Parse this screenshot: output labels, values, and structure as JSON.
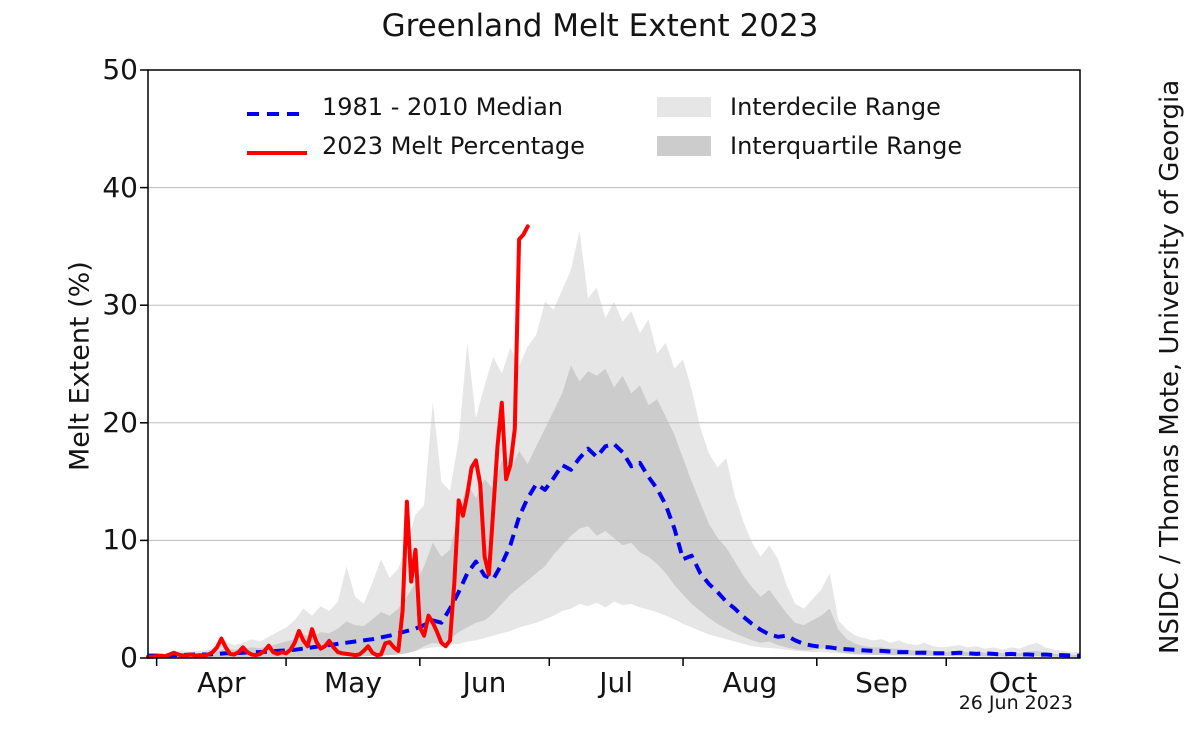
{
  "title": "Greenland Melt Extent 2023",
  "credit": "NSIDC / Thomas Mote, University of Georgia",
  "date_label": "26 Jun 2023",
  "colors": {
    "red_2023": "#ff0000",
    "blue_median": "#0000ee",
    "interdecile": "#e6e6e6",
    "interquartile": "#cccccc",
    "grid": "#bdbdbd",
    "axis": "#000000"
  },
  "legend": {
    "items": [
      {
        "label": "1981 - 2010 Median",
        "style": "dashed",
        "color": "#0000ee"
      },
      {
        "label": "2023 Melt Percentage",
        "style": "solid",
        "color": "#ff0000"
      },
      {
        "label": "Interdecile Range",
        "style": "box",
        "color": "#e6e6e6"
      },
      {
        "label": "Interquartile Range",
        "style": "box",
        "color": "#cccccc"
      }
    ]
  },
  "chart_data": {
    "type": "line",
    "title": "Greenland Melt Extent 2023",
    "xlabel": "",
    "ylabel": "Melt Extent (%)",
    "ylim": [
      0,
      50
    ],
    "y_ticks": [
      0,
      10,
      20,
      30,
      40,
      50
    ],
    "grid_values": [
      10,
      20,
      30,
      40
    ],
    "x_domain_day_of_year": [
      89,
      305
    ],
    "month_ticks": [
      {
        "doy": 91,
        "mid_doy": 106,
        "label": "Apr"
      },
      {
        "doy": 121,
        "mid_doy": 136.5,
        "label": "May"
      },
      {
        "doy": 152,
        "mid_doy": 167,
        "label": "Jun"
      },
      {
        "doy": 182,
        "mid_doy": 197.5,
        "label": "Jul"
      },
      {
        "doy": 213,
        "mid_doy": 228.5,
        "label": "Aug"
      },
      {
        "doy": 244,
        "mid_doy": 259,
        "label": "Sep"
      },
      {
        "doy": 274,
        "mid_doy": 289.5,
        "label": "Oct"
      }
    ],
    "series": [
      {
        "name": "Interdecile Range upper (90th pct)",
        "role": "band_hi",
        "band": "interdecile",
        "x_start": 89,
        "x_step": 2,
        "values": [
          0.3,
          0.3,
          0.35,
          0.5,
          0.6,
          0.5,
          0.6,
          0.7,
          0.9,
          1.4,
          1.1,
          1.3,
          1.6,
          1.4,
          1.8,
          2.2,
          2.6,
          3.2,
          4.2,
          3.6,
          4.4,
          4.0,
          4.8,
          7.8,
          5.2,
          4.6,
          6.4,
          8.4,
          6.8,
          7.6,
          9.6,
          12.2,
          13.0,
          21.8,
          15.0,
          14.2,
          18.6,
          26.8,
          20.4,
          23.2,
          25.6,
          24.2,
          26.4,
          24.8,
          26.5,
          27.5,
          30.3,
          29.6,
          31.3,
          33.0,
          36.3,
          30.6,
          31.5,
          28.9,
          30.3,
          28.6,
          29.5,
          27.6,
          28.8,
          25.9,
          26.8,
          24.6,
          25.4,
          22.8,
          19.6,
          17.4,
          16.2,
          17.0,
          13.8,
          11.6,
          9.8,
          8.6,
          9.6,
          8.4,
          6.2,
          4.6,
          4.2,
          5.0,
          5.8,
          7.2,
          3.2,
          2.4,
          1.9,
          1.7,
          1.5,
          1.6,
          1.3,
          1.5,
          1.2,
          1.1,
          1.3,
          1.0,
          0.9,
          1.0,
          1.1,
          0.9,
          1.0,
          0.8,
          0.9,
          0.7,
          0.9,
          0.8,
          1.1,
          1.3,
          0.9,
          0.7,
          0.6,
          0.5,
          0.5
        ]
      },
      {
        "name": "Interdecile Range lower (10th pct)",
        "role": "band_lo",
        "band": "interdecile",
        "x_start": 89,
        "x_step": 2,
        "values": [
          0.05,
          0.05,
          0.05,
          0.05,
          0.05,
          0.05,
          0.05,
          0.05,
          0.1,
          0.1,
          0.1,
          0.1,
          0.1,
          0.1,
          0.1,
          0.1,
          0.1,
          0.15,
          0.15,
          0.15,
          0.15,
          0.15,
          0.2,
          0.2,
          0.2,
          0.25,
          0.25,
          0.3,
          0.35,
          0.4,
          0.45,
          0.6,
          0.8,
          0.9,
          0.95,
          1.1,
          1.2,
          1.4,
          1.5,
          1.7,
          1.9,
          2.1,
          2.3,
          2.6,
          2.8,
          3.0,
          3.3,
          3.6,
          4.0,
          4.2,
          4.6,
          4.4,
          4.7,
          4.3,
          4.8,
          4.5,
          4.6,
          4.3,
          4.1,
          3.9,
          3.6,
          3.3,
          2.9,
          2.6,
          2.3,
          2.0,
          1.8,
          1.6,
          1.4,
          1.2,
          1.0,
          0.9,
          0.85,
          0.8,
          0.7,
          0.6,
          0.55,
          0.5,
          0.5,
          0.45,
          0.4,
          0.35,
          0.3,
          0.28,
          0.26,
          0.25,
          0.24,
          0.22,
          0.2,
          0.2,
          0.18,
          0.17,
          0.16,
          0.16,
          0.15,
          0.15,
          0.14,
          0.14,
          0.13,
          0.12,
          0.12,
          0.12,
          0.12,
          0.12,
          0.1,
          0.1,
          0.1,
          0.08,
          0.08
        ]
      },
      {
        "name": "Interquartile Range upper (75th pct)",
        "role": "band_hi",
        "band": "interquartile",
        "x_start": 89,
        "x_step": 2,
        "values": [
          0.2,
          0.2,
          0.25,
          0.3,
          0.35,
          0.35,
          0.4,
          0.45,
          0.55,
          0.8,
          0.7,
          0.8,
          0.9,
          0.85,
          1.0,
          1.2,
          1.4,
          1.6,
          2.0,
          1.8,
          2.2,
          2.1,
          2.5,
          3.1,
          2.8,
          2.7,
          3.3,
          3.9,
          3.6,
          4.2,
          5.2,
          6.4,
          7.8,
          9.8,
          8.6,
          9.2,
          12.4,
          14.8,
          13.6,
          15.2,
          14.4,
          16.8,
          16.0,
          17.6,
          16.5,
          18.0,
          19.5,
          21.0,
          22.5,
          24.9,
          23.5,
          24.4,
          24.0,
          24.6,
          23.0,
          24.0,
          22.5,
          23.2,
          21.5,
          22.0,
          20.5,
          19.0,
          17.0,
          15.0,
          13.2,
          11.4,
          10.2,
          9.4,
          8.2,
          7.0,
          6.0,
          5.2,
          5.8,
          4.8,
          3.8,
          3.0,
          2.8,
          3.2,
          3.6,
          4.2,
          2.4,
          1.6,
          1.2,
          1.0,
          0.9,
          0.9,
          0.8,
          0.8,
          0.7,
          0.6,
          0.7,
          0.6,
          0.5,
          0.55,
          0.6,
          0.5,
          0.55,
          0.45,
          0.5,
          0.4,
          0.45,
          0.4,
          0.55,
          0.6,
          0.45,
          0.35,
          0.3,
          0.25,
          0.25
        ]
      },
      {
        "name": "Interquartile Range lower (25th pct)",
        "role": "band_lo",
        "band": "interquartile",
        "x_start": 89,
        "x_step": 2,
        "values": [
          0.05,
          0.05,
          0.05,
          0.05,
          0.05,
          0.05,
          0.05,
          0.05,
          0.05,
          0.05,
          0.05,
          0.05,
          0.05,
          0.1,
          0.1,
          0.1,
          0.1,
          0.1,
          0.1,
          0.1,
          0.1,
          0.1,
          0.12,
          0.15,
          0.15,
          0.15,
          0.18,
          0.2,
          0.25,
          0.3,
          0.4,
          0.6,
          1.0,
          1.3,
          1.2,
          1.6,
          2.2,
          2.6,
          3.0,
          3.2,
          3.8,
          4.6,
          5.4,
          6.0,
          6.6,
          7.2,
          7.8,
          8.8,
          9.6,
          10.4,
          11.0,
          11.2,
          10.4,
          10.8,
          10.2,
          9.6,
          9.8,
          9.0,
          8.6,
          8.0,
          7.2,
          6.2,
          5.4,
          4.6,
          4.0,
          3.4,
          2.9,
          2.5,
          2.1,
          1.8,
          1.5,
          1.3,
          1.4,
          1.1,
          0.9,
          0.75,
          0.65,
          0.7,
          0.8,
          0.9,
          0.5,
          0.4,
          0.33,
          0.3,
          0.28,
          0.26,
          0.25,
          0.24,
          0.22,
          0.2,
          0.2,
          0.18,
          0.17,
          0.17,
          0.18,
          0.16,
          0.16,
          0.14,
          0.15,
          0.12,
          0.13,
          0.12,
          0.15,
          0.16,
          0.12,
          0.1,
          0.1,
          0.08,
          0.08
        ]
      },
      {
        "name": "1981 - 2010 Median",
        "role": "line",
        "line": "median",
        "x_start": 89,
        "x_step": 2,
        "values": [
          0.2,
          0.2,
          0.2,
          0.25,
          0.25,
          0.3,
          0.3,
          0.3,
          0.35,
          0.4,
          0.4,
          0.45,
          0.5,
          0.5,
          0.55,
          0.6,
          0.65,
          0.7,
          0.8,
          0.9,
          1.0,
          1.1,
          1.2,
          1.3,
          1.4,
          1.5,
          1.6,
          1.75,
          1.9,
          2.1,
          2.3,
          2.5,
          2.8,
          3.2,
          3.0,
          4.2,
          5.6,
          7.2,
          8.2,
          7.0,
          6.7,
          8.0,
          9.6,
          12.0,
          13.6,
          14.8,
          14.3,
          15.3,
          16.4,
          16.0,
          17.0,
          17.8,
          17.1,
          18.0,
          18.2,
          17.5,
          16.3,
          16.6,
          15.4,
          14.4,
          13.0,
          11.0,
          8.4,
          8.7,
          7.2,
          6.3,
          5.6,
          4.8,
          4.2,
          3.5,
          2.9,
          2.4,
          2.0,
          1.8,
          1.9,
          1.5,
          1.2,
          1.05,
          0.95,
          0.9,
          0.8,
          0.75,
          0.7,
          0.65,
          0.6,
          0.6,
          0.55,
          0.5,
          0.5,
          0.45,
          0.45,
          0.4,
          0.4,
          0.4,
          0.45,
          0.4,
          0.35,
          0.4,
          0.35,
          0.3,
          0.35,
          0.3,
          0.3,
          0.25,
          0.3,
          0.25,
          0.25,
          0.2,
          0.2
        ]
      },
      {
        "name": "2023 Melt Percentage",
        "role": "line",
        "line": "red2023",
        "x_start": 89,
        "x_step": 1,
        "values": [
          0.1,
          0.1,
          0.15,
          0.2,
          0.15,
          0.3,
          0.45,
          0.3,
          0.2,
          0.25,
          0.3,
          0.2,
          0.25,
          0.2,
          0.3,
          0.5,
          0.9,
          1.65,
          0.9,
          0.35,
          0.3,
          0.5,
          0.9,
          0.5,
          0.3,
          0.25,
          0.35,
          0.6,
          1.05,
          0.5,
          0.35,
          0.5,
          0.4,
          0.7,
          1.3,
          2.3,
          1.5,
          1.0,
          2.45,
          1.4,
          0.8,
          1.0,
          1.45,
          0.9,
          0.5,
          0.4,
          0.35,
          0.3,
          0.25,
          0.3,
          0.6,
          1.0,
          0.45,
          0.25,
          0.3,
          1.25,
          1.35,
          0.9,
          0.6,
          4.0,
          13.3,
          6.5,
          9.2,
          2.6,
          1.9,
          3.6,
          3.0,
          2.2,
          1.3,
          1.0,
          1.5,
          6.5,
          13.4,
          12.1,
          13.9,
          16.2,
          16.8,
          14.8,
          8.6,
          7.1,
          12.5,
          18.0,
          21.7,
          15.2,
          16.4,
          19.5,
          35.6,
          36.0,
          36.7
        ]
      }
    ]
  }
}
